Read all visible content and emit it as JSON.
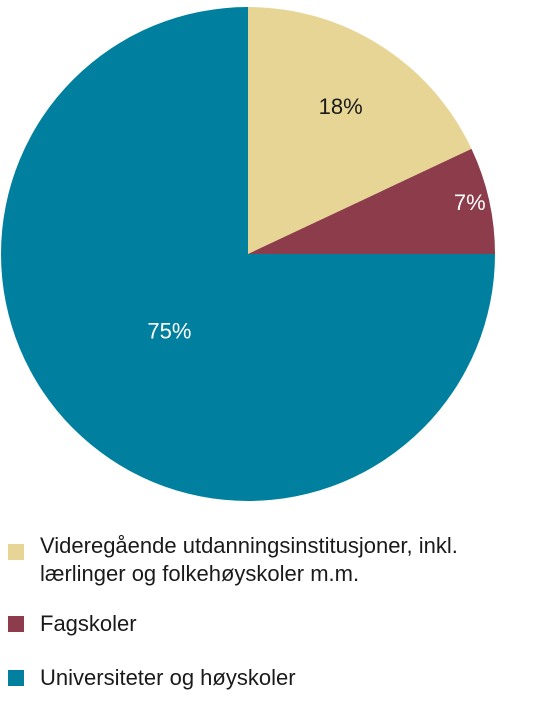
{
  "chart_data": {
    "type": "pie",
    "categories": [
      "Videregående utdanningsinstitusjoner, inkl. lærlinger og folkehøyskoler m.m.",
      "Fagskoler",
      "Universiteter og høyskoler"
    ],
    "values": [
      18,
      7,
      75
    ],
    "value_labels": [
      "18%",
      "7%",
      "75%"
    ],
    "colors": [
      "#e6d594",
      "#8c3c4b",
      "#00809e"
    ],
    "label_colors": [
      "#1a1a1a",
      "#ffffff",
      "#ffffff"
    ],
    "start_angle_deg": 0,
    "direction": "clockwise",
    "legend_position": "bottom"
  },
  "legend": {
    "items": [
      {
        "label_line1": "Videregående utdanningsinstitusjoner, inkl.",
        "label_line2": "lærlinger og folkehøyskoler m.m.",
        "color": "#e6d594"
      },
      {
        "label_line1": "Fagskoler",
        "label_line2": "",
        "color": "#8c3c4b"
      },
      {
        "label_line1": "Universiteter og høyskoler",
        "label_line2": "",
        "color": "#00809e"
      }
    ]
  }
}
